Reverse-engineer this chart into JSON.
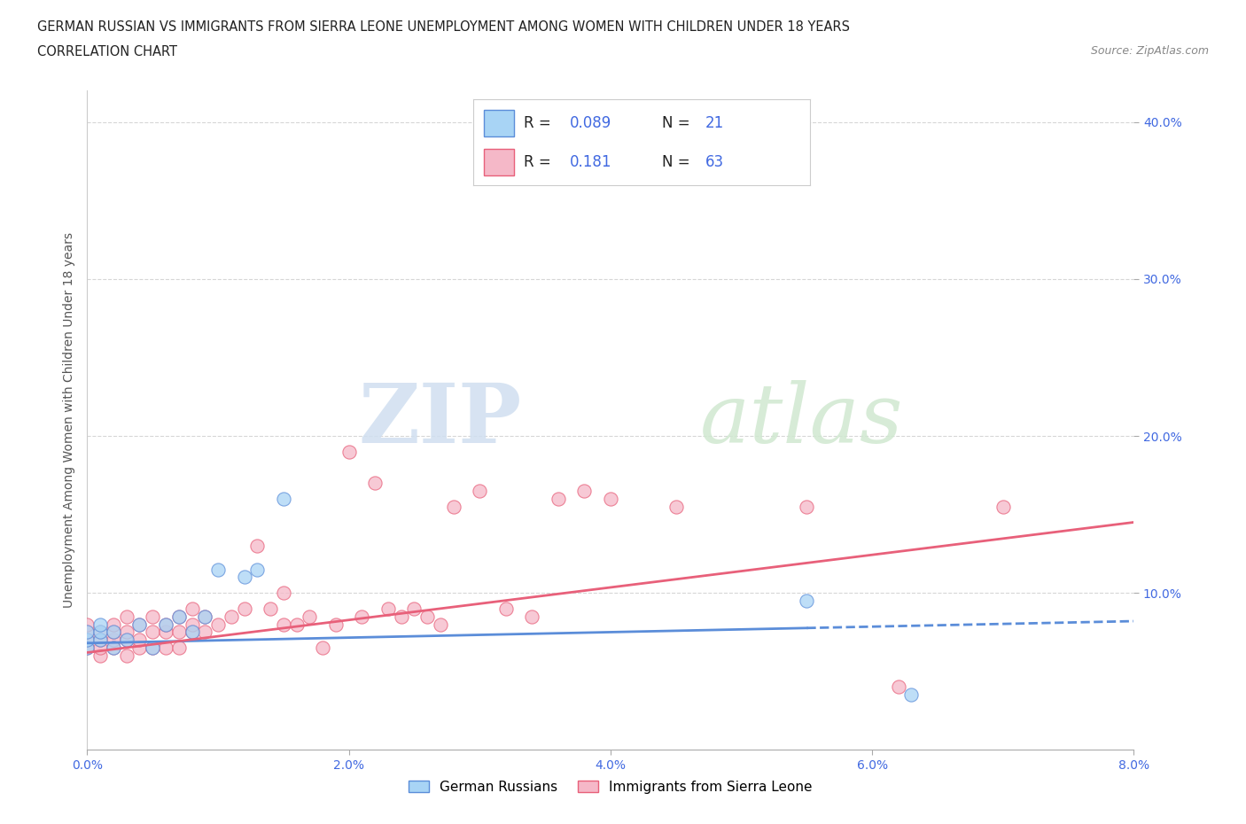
{
  "title_line1": "GERMAN RUSSIAN VS IMMIGRANTS FROM SIERRA LEONE UNEMPLOYMENT AMONG WOMEN WITH CHILDREN UNDER 18 YEARS",
  "title_line2": "CORRELATION CHART",
  "source": "Source: ZipAtlas.com",
  "ylabel": "Unemployment Among Women with Children Under 18 years",
  "xlim": [
    0.0,
    0.08
  ],
  "ylim": [
    0.0,
    0.42
  ],
  "xticks": [
    0.0,
    0.02,
    0.04,
    0.06,
    0.08
  ],
  "xticklabels": [
    "0.0%",
    "2.0%",
    "4.0%",
    "6.0%",
    "8.0%"
  ],
  "yticks": [
    0.1,
    0.2,
    0.3,
    0.4
  ],
  "yticklabels": [
    "10.0%",
    "20.0%",
    "30.0%",
    "40.0%"
  ],
  "color_blue": "#a8d4f5",
  "color_pink": "#f5b8c8",
  "color_blue_line": "#5b8dd9",
  "color_pink_line": "#e8607a",
  "color_text_blue": "#4169E1",
  "R_blue": 0.089,
  "N_blue": 21,
  "R_pink": 0.181,
  "N_pink": 63,
  "legend_labels": [
    "German Russians",
    "Immigrants from Sierra Leone"
  ],
  "watermark_zip": "ZIP",
  "watermark_atlas": "atlas",
  "blue_scatter_x": [
    0.0,
    0.0,
    0.0,
    0.001,
    0.001,
    0.001,
    0.002,
    0.002,
    0.003,
    0.004,
    0.005,
    0.006,
    0.007,
    0.008,
    0.009,
    0.01,
    0.012,
    0.013,
    0.015,
    0.055,
    0.063
  ],
  "blue_scatter_y": [
    0.065,
    0.07,
    0.075,
    0.07,
    0.075,
    0.08,
    0.065,
    0.075,
    0.07,
    0.08,
    0.065,
    0.08,
    0.085,
    0.075,
    0.085,
    0.115,
    0.11,
    0.115,
    0.16,
    0.095,
    0.035
  ],
  "pink_scatter_x": [
    0.0,
    0.0,
    0.0,
    0.0,
    0.001,
    0.001,
    0.001,
    0.001,
    0.002,
    0.002,
    0.002,
    0.002,
    0.003,
    0.003,
    0.003,
    0.003,
    0.004,
    0.004,
    0.004,
    0.005,
    0.005,
    0.005,
    0.006,
    0.006,
    0.006,
    0.007,
    0.007,
    0.007,
    0.008,
    0.008,
    0.008,
    0.009,
    0.009,
    0.01,
    0.011,
    0.012,
    0.013,
    0.014,
    0.015,
    0.015,
    0.016,
    0.017,
    0.018,
    0.019,
    0.02,
    0.021,
    0.022,
    0.023,
    0.024,
    0.025,
    0.026,
    0.027,
    0.028,
    0.03,
    0.032,
    0.034,
    0.036,
    0.038,
    0.04,
    0.045,
    0.055,
    0.062,
    0.07
  ],
  "pink_scatter_y": [
    0.065,
    0.07,
    0.075,
    0.08,
    0.06,
    0.065,
    0.07,
    0.075,
    0.065,
    0.07,
    0.075,
    0.08,
    0.06,
    0.07,
    0.075,
    0.085,
    0.065,
    0.07,
    0.08,
    0.065,
    0.075,
    0.085,
    0.065,
    0.075,
    0.08,
    0.065,
    0.075,
    0.085,
    0.075,
    0.08,
    0.09,
    0.075,
    0.085,
    0.08,
    0.085,
    0.09,
    0.13,
    0.09,
    0.08,
    0.1,
    0.08,
    0.085,
    0.065,
    0.08,
    0.19,
    0.085,
    0.17,
    0.09,
    0.085,
    0.09,
    0.085,
    0.08,
    0.155,
    0.165,
    0.09,
    0.085,
    0.16,
    0.165,
    0.16,
    0.155,
    0.155,
    0.04,
    0.155
  ],
  "blue_line_solid_end": 0.055,
  "pink_line_x0": 0.0,
  "pink_line_y0": 0.062,
  "pink_line_x1": 0.08,
  "pink_line_y1": 0.145,
  "blue_line_x0": 0.0,
  "blue_line_y0": 0.068,
  "blue_line_x1": 0.08,
  "blue_line_y1": 0.082
}
